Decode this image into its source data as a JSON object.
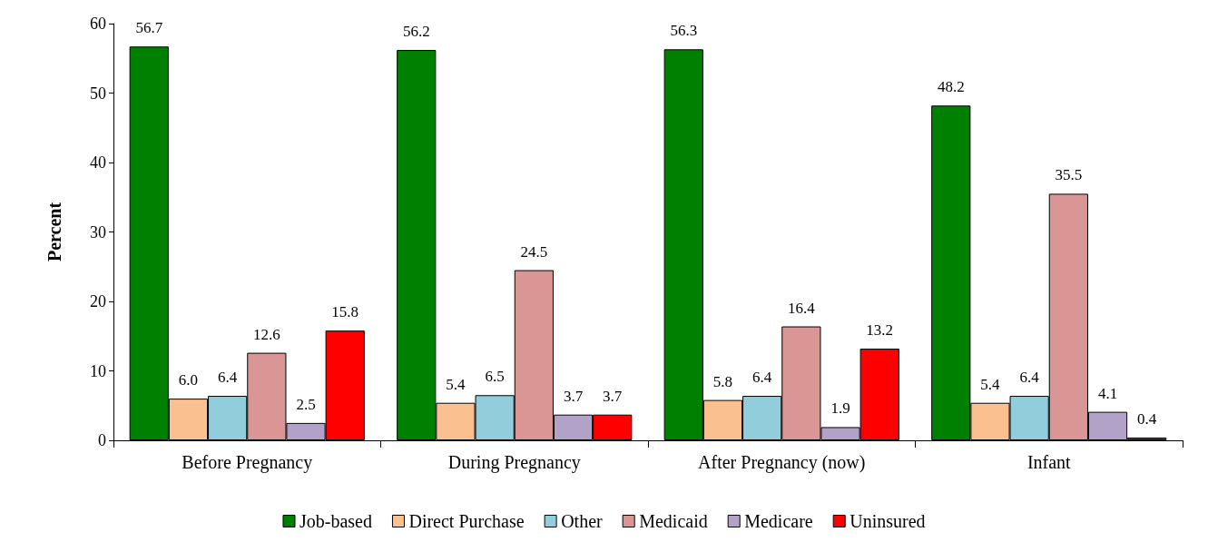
{
  "chart_data": {
    "type": "bar",
    "ylabel": "Percent",
    "categories": [
      "Before Pregnancy",
      "During Pregnancy",
      "After Pregnancy (now)",
      "Infant"
    ],
    "series": [
      {
        "name": "Job-based",
        "color": "#008000",
        "values": [
          56.7,
          56.2,
          56.3,
          48.2
        ],
        "value_labels": [
          "56.7",
          "56.2",
          "56.3",
          "48.2"
        ]
      },
      {
        "name": "Direct Purchase",
        "color": "#fac090",
        "values": [
          6.0,
          5.4,
          5.8,
          5.4
        ],
        "value_labels": [
          "6.0",
          "5.4",
          "5.8",
          "5.4"
        ]
      },
      {
        "name": "Other",
        "color": "#92cddc",
        "values": [
          6.4,
          6.5,
          6.4,
          6.4
        ],
        "value_labels": [
          "6.4",
          "6.5",
          "6.4",
          "6.4"
        ]
      },
      {
        "name": "Medicaid",
        "color": "#d99694",
        "values": [
          12.6,
          24.5,
          16.4,
          35.5
        ],
        "value_labels": [
          "12.6",
          "24.5",
          "16.4",
          "35.5"
        ]
      },
      {
        "name": "Medicare",
        "color": "#b3a2c7",
        "values": [
          2.5,
          3.7,
          1.9,
          4.1
        ],
        "value_labels": [
          "2.5",
          "3.7",
          "1.9",
          "4.1"
        ]
      },
      {
        "name": "Uninsured",
        "color": "#ff0000",
        "values": [
          15.8,
          3.7,
          13.2,
          0.4
        ],
        "value_labels": [
          "15.8",
          "3.7",
          "13.2",
          "0.4"
        ]
      }
    ],
    "ylim": [
      0,
      60
    ],
    "yticks": [
      0,
      10,
      20,
      30,
      40,
      50,
      60
    ],
    "grid": false,
    "legend": "bottom"
  }
}
